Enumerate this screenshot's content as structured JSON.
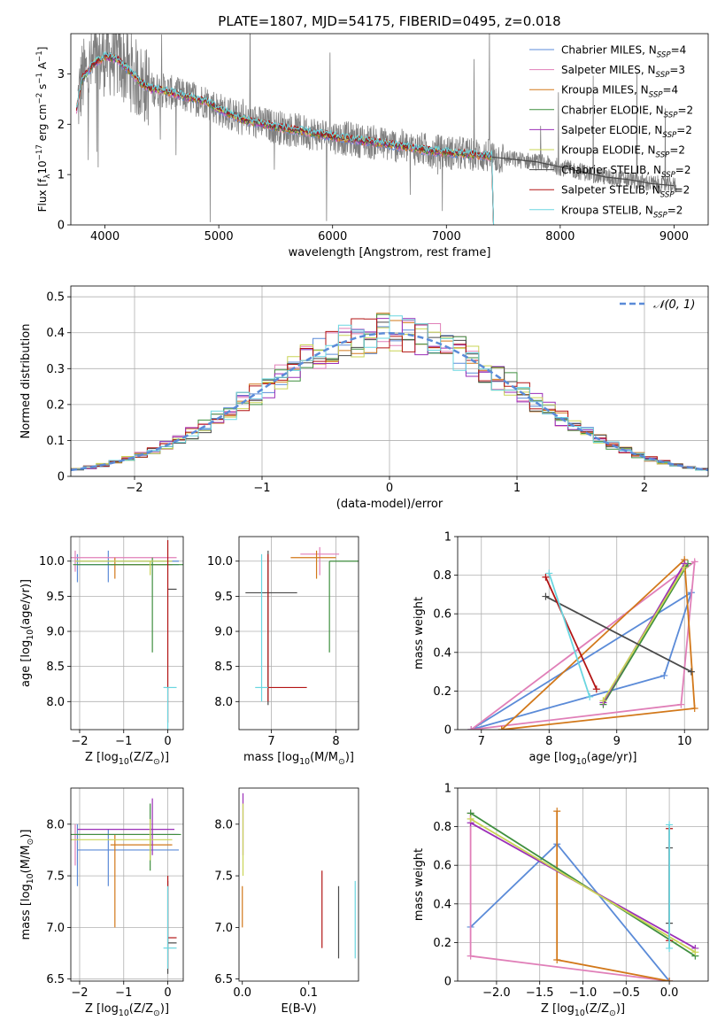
{
  "figure": {
    "colors": {
      "Chabrier MILES": "#5b8bd8",
      "Salpeter MILES": "#e07fb8",
      "Kroupa MILES": "#d2781a",
      "Chabrier ELODIE": "#3f8f3f",
      "Salpeter ELODIE": "#9b2fb8",
      "Kroupa ELODIE": "#c9d455",
      "Chabrier STELIB": "#4a4a4a",
      "Salpeter STELIB": "#b31515",
      "Kroupa STELIB": "#6ad6e0"
    }
  },
  "chart_data": [
    {
      "id": "spectrum",
      "type": "line",
      "title": "PLATE=1807, MJD=54175, FIBERID=0495, z=0.018",
      "xlabel": "wavelength [Angstrom, rest frame]",
      "ylabel": "Flux [f$_\\lambda$10$^{-17}$ erg cm$^{-2}$ s$^{-1}$ A$^{-1}$]",
      "xlim": [
        3700,
        9300
      ],
      "ylim": [
        0,
        3.8
      ],
      "xticks": [
        4000,
        5000,
        6000,
        7000,
        8000,
        9000
      ],
      "yticks": [
        0,
        1,
        2,
        3
      ],
      "grid": false,
      "legend_position": "upper right",
      "series": [
        {
          "name": "Chabrier MILES, N$_{SSP}$=4",
          "model": "Chabrier MILES"
        },
        {
          "name": "Salpeter MILES, N$_{SSP}$=3",
          "model": "Salpeter MILES"
        },
        {
          "name": "Kroupa MILES, N$_{SSP}$=4",
          "model": "Kroupa MILES"
        },
        {
          "name": "Chabrier ELODIE, N$_{SSP}$=2",
          "model": "Chabrier ELODIE"
        },
        {
          "name": "Salpeter ELODIE, N$_{SSP}$=2",
          "model": "Salpeter ELODIE"
        },
        {
          "name": "Kroupa ELODIE, N$_{SSP}$=2",
          "model": "Kroupa ELODIE"
        },
        {
          "name": "Chabrier STELIB, N$_{SSP}$=2",
          "model": "Chabrier STELIB"
        },
        {
          "name": "Salpeter STELIB, N$_{SSP}$=2",
          "model": "Salpeter STELIB"
        },
        {
          "name": "Kroupa STELIB, N$_{SSP}$=2",
          "model": "Kroupa STELIB"
        }
      ],
      "model_continuum": [
        [
          3750,
          2.3
        ],
        [
          3800,
          2.9
        ],
        [
          3900,
          3.2
        ],
        [
          4000,
          3.35
        ],
        [
          4100,
          3.3
        ],
        [
          4200,
          3.1
        ],
        [
          4300,
          2.85
        ],
        [
          4400,
          2.7
        ],
        [
          4500,
          2.68
        ],
        [
          4600,
          2.62
        ],
        [
          4700,
          2.55
        ],
        [
          4800,
          2.5
        ],
        [
          4900,
          2.45
        ],
        [
          5000,
          2.3
        ],
        [
          5100,
          2.2
        ],
        [
          5200,
          2.1
        ],
        [
          5300,
          2.05
        ],
        [
          5500,
          1.95
        ],
        [
          5700,
          1.87
        ],
        [
          5900,
          1.8
        ],
        [
          6100,
          1.72
        ],
        [
          6300,
          1.66
        ],
        [
          6500,
          1.6
        ],
        [
          6700,
          1.53
        ],
        [
          6900,
          1.46
        ],
        [
          7100,
          1.42
        ],
        [
          7300,
          1.38
        ],
        [
          7400,
          1.36
        ]
      ],
      "model_extension": [
        [
          7400,
          1.35
        ],
        [
          7600,
          1.3
        ],
        [
          7800,
          1.25
        ],
        [
          8000,
          1.15
        ],
        [
          8200,
          1.05
        ],
        [
          8400,
          0.95
        ],
        [
          8600,
          0.9
        ],
        [
          8800,
          0.82
        ],
        [
          9000,
          0.78
        ]
      ],
      "model_extension_model": "Chabrier STELIB"
    },
    {
      "id": "residuals",
      "type": "line",
      "xlabel": "(data-model)/error",
      "ylabel": "Normed distribution",
      "xlim": [
        -2.5,
        2.5
      ],
      "ylim": [
        0,
        0.53
      ],
      "xticks": [
        -2,
        -1,
        0,
        1,
        2
      ],
      "xticklabels": [
        "−2",
        "−1",
        "0",
        "1",
        "2"
      ],
      "yticks": [
        0,
        0.1,
        0.2,
        0.3,
        0.4,
        0.5
      ],
      "grid": true,
      "legend_position": "upper right",
      "reference_label": "𝒩(0, 1)",
      "reference_model": "Chabrier MILES",
      "bin_width": 0.1
    },
    {
      "id": "age-vs-Z",
      "type": "scatter",
      "xlabel": "Z [log$_{10}$(Z/Z$_\\odot$)]",
      "ylabel": "age  [log$_{10}$(age/yr)]",
      "xlim": [
        -2.2,
        0.35
      ],
      "ylim": [
        7.6,
        10.35
      ],
      "xticks": [
        -2,
        -1,
        0
      ],
      "xticklabels": [
        "−2",
        "−1",
        "0"
      ],
      "yticks": [
        8.0,
        8.5,
        9.0,
        9.5,
        10.0
      ],
      "yticklabels": [
        "8.0",
        "8.5",
        "9.0",
        "9.5",
        "10.0"
      ],
      "grid": true,
      "points": [
        {
          "model": "Chabrier MILES",
          "x": -2.05,
          "y": 10.0
        },
        {
          "model": "Chabrier MILES",
          "x": -1.35,
          "y": 9.95
        },
        {
          "model": "Salpeter MILES",
          "x": -2.1,
          "y": 10.05
        },
        {
          "model": "Kroupa MILES",
          "x": -1.2,
          "y": 9.95
        },
        {
          "model": "Chabrier ELODIE",
          "x": -0.35,
          "y": 9.95
        },
        {
          "model": "Kroupa ELODIE",
          "x": -0.4,
          "y": 10.0
        },
        {
          "model": "Chabrier STELIB",
          "x": 0.0,
          "y": 9.6
        },
        {
          "model": "Salpeter STELIB",
          "x": 0.0,
          "y": 10.0
        },
        {
          "model": "Kroupa STELIB",
          "x": 0.0,
          "y": 8.2
        }
      ]
    },
    {
      "id": "age-vs-mass",
      "type": "scatter",
      "xlabel": "mass [log$_{10}$(M/M$_\\odot$)]",
      "xlim": [
        6.5,
        8.35
      ],
      "ylim": [
        7.6,
        10.35
      ],
      "xticks": [
        7,
        8
      ],
      "yticks": [
        8.0,
        8.5,
        9.0,
        9.5,
        10.0
      ],
      "yticklabels": [
        "8.0",
        "8.5",
        "9.0",
        "9.5",
        "10.0"
      ],
      "grid": true,
      "points": [
        {
          "model": "Salpeter MILES",
          "x": 7.75,
          "y": 10.1
        },
        {
          "model": "Kroupa MILES",
          "x": 7.7,
          "y": 10.05
        },
        {
          "model": "Chabrier ELODIE",
          "x": 7.9,
          "y": 10.0
        },
        {
          "model": "Chabrier STELIB",
          "x": 6.95,
          "y": 9.55
        },
        {
          "model": "Salpeter STELIB",
          "x": 6.95,
          "y": 8.2
        },
        {
          "model": "Kroupa STELIB",
          "x": 6.85,
          "y": 8.2
        }
      ]
    },
    {
      "id": "weight-vs-age",
      "type": "line",
      "xlabel": "age  [log$_{10}$(age/yr)]",
      "ylabel": "mass weight",
      "xlim": [
        6.65,
        10.35
      ],
      "ylim": [
        0,
        1.0
      ],
      "xticks": [
        7,
        8,
        9,
        10
      ],
      "yticks": [
        0,
        0.2,
        0.4,
        0.6,
        0.8,
        1.0
      ],
      "grid": true,
      "series": [
        {
          "model": "Chabrier MILES",
          "x": [
            6.85,
            9.7,
            10.1,
            6.85
          ],
          "y": [
            0.0,
            0.28,
            0.71,
            0.0
          ]
        },
        {
          "model": "Salpeter MILES",
          "x": [
            6.85,
            10.15,
            9.95,
            6.85
          ],
          "y": [
            0.0,
            0.87,
            0.13,
            0.0
          ]
        },
        {
          "model": "Kroupa MILES",
          "x": [
            7.3,
            10.0,
            10.15,
            7.3
          ],
          "y": [
            0.0,
            0.88,
            0.11,
            0.0
          ]
        },
        {
          "model": "Chabrier ELODIE",
          "x": [
            8.8,
            10.05
          ],
          "y": [
            0.13,
            0.86
          ]
        },
        {
          "model": "Salpeter ELODIE",
          "x": [
            8.8,
            10.0
          ],
          "y": [
            0.14,
            0.86
          ]
        },
        {
          "model": "Kroupa ELODIE",
          "x": [
            8.8,
            10.0
          ],
          "y": [
            0.15,
            0.84
          ]
        },
        {
          "model": "Chabrier STELIB",
          "x": [
            7.95,
            10.1
          ],
          "y": [
            0.69,
            0.3
          ]
        },
        {
          "model": "Salpeter STELIB",
          "x": [
            7.95,
            8.7
          ],
          "y": [
            0.79,
            0.21
          ]
        },
        {
          "model": "Kroupa STELIB",
          "x": [
            8.0,
            8.6
          ],
          "y": [
            0.81,
            0.17
          ]
        }
      ]
    },
    {
      "id": "mass-vs-Z",
      "type": "scatter",
      "xlabel": "Z [log$_{10}$(Z/Z$_\\odot$)]",
      "ylabel": "mass [log$_{10}$(M/M$_\\odot$)]",
      "xlim": [
        -2.2,
        0.35
      ],
      "ylim": [
        6.48,
        8.35
      ],
      "xticks": [
        -2,
        -1,
        0
      ],
      "xticklabels": [
        "−2",
        "−1",
        "0"
      ],
      "yticks": [
        6.5,
        7.0,
        7.5,
        8.0
      ],
      "yticklabels": [
        "6.5",
        "7.0",
        "7.5",
        "8.0"
      ],
      "grid": true,
      "points": [
        {
          "model": "Chabrier MILES",
          "x": -2.05,
          "y": 7.9
        },
        {
          "model": "Chabrier MILES",
          "x": -1.35,
          "y": 7.75
        },
        {
          "model": "Salpeter MILES",
          "x": -2.1,
          "y": 7.9
        },
        {
          "model": "Kroupa MILES",
          "x": -1.2,
          "y": 7.8
        },
        {
          "model": "Chabrier ELODIE",
          "x": -0.4,
          "y": 7.9
        },
        {
          "model": "Salpeter ELODIE",
          "x": -0.35,
          "y": 7.95
        },
        {
          "model": "Kroupa ELODIE",
          "x": -0.4,
          "y": 7.85
        },
        {
          "model": "Chabrier STELIB",
          "x": 0.0,
          "y": 6.85
        },
        {
          "model": "Salpeter STELIB",
          "x": 0.0,
          "y": 6.9
        },
        {
          "model": "Kroupa STELIB",
          "x": 0.0,
          "y": 6.8
        }
      ]
    },
    {
      "id": "mass-vs-ebv",
      "type": "scatter",
      "xlabel": "E(B-V)",
      "xlim": [
        -0.005,
        0.175
      ],
      "ylim": [
        6.48,
        8.35
      ],
      "xticks": [
        0.0,
        0.1
      ],
      "xticklabels": [
        "0.0",
        "0.1"
      ],
      "yticks": [
        6.5,
        7.0,
        7.5,
        8.0
      ],
      "yticklabels": [
        "6.5",
        "7.0",
        "7.5",
        "8.0"
      ],
      "grid": false,
      "points": [
        {
          "model": "Salpeter ELODIE",
          "x": 0.001,
          "y": 8.0
        },
        {
          "model": "Kroupa ELODIE",
          "x": 0.001,
          "y": 8.0
        },
        {
          "model": "Kroupa MILES",
          "x": 0.0,
          "y": 7.2
        },
        {
          "model": "Salpeter STELIB",
          "x": 0.12,
          "y": 7.1
        },
        {
          "model": "Chabrier STELIB",
          "x": 0.145,
          "y": 7.0
        },
        {
          "model": "Kroupa STELIB",
          "x": 0.17,
          "y": 7.1
        }
      ]
    },
    {
      "id": "weight-vs-Z",
      "type": "line",
      "xlabel": "Z [log$_{10}$(Z/Z$_\\odot$)]",
      "ylabel": "mass weight",
      "xlim": [
        -2.45,
        0.45
      ],
      "ylim": [
        0,
        1.0
      ],
      "xticks": [
        -2.0,
        -1.5,
        -1.0,
        -0.5,
        0.0
      ],
      "xticklabels": [
        "−2.0",
        "−1.5",
        "−1.0",
        "−0.5",
        "0.0"
      ],
      "yticks": [
        0,
        0.2,
        0.4,
        0.6,
        0.8,
        1.0
      ],
      "grid": true,
      "series": [
        {
          "model": "Chabrier MILES",
          "x": [
            -2.3,
            -1.3,
            0.0
          ],
          "y": [
            0.28,
            0.71,
            0.0
          ]
        },
        {
          "model": "Salpeter MILES",
          "x": [
            -2.3,
            -2.3,
            0.0
          ],
          "y": [
            0.87,
            0.13,
            0.0
          ]
        },
        {
          "model": "Kroupa MILES",
          "x": [
            -1.3,
            -1.3,
            0.0
          ],
          "y": [
            0.88,
            0.11,
            0.0
          ]
        },
        {
          "model": "Chabrier ELODIE",
          "x": [
            -2.3,
            0.3
          ],
          "y": [
            0.87,
            0.13
          ]
        },
        {
          "model": "Salpeter ELODIE",
          "x": [
            -2.3,
            0.3
          ],
          "y": [
            0.82,
            0.17
          ]
        },
        {
          "model": "Kroupa ELODIE",
          "x": [
            -2.3,
            0.3
          ],
          "y": [
            0.84,
            0.15
          ]
        },
        {
          "model": "Chabrier STELIB",
          "x": [
            0.0,
            0.0
          ],
          "y": [
            0.69,
            0.3
          ]
        },
        {
          "model": "Salpeter STELIB",
          "x": [
            0.0,
            0.0
          ],
          "y": [
            0.79,
            0.21
          ]
        },
        {
          "model": "Kroupa STELIB",
          "x": [
            0.0,
            0.0
          ],
          "y": [
            0.81,
            0.17
          ]
        }
      ]
    }
  ]
}
